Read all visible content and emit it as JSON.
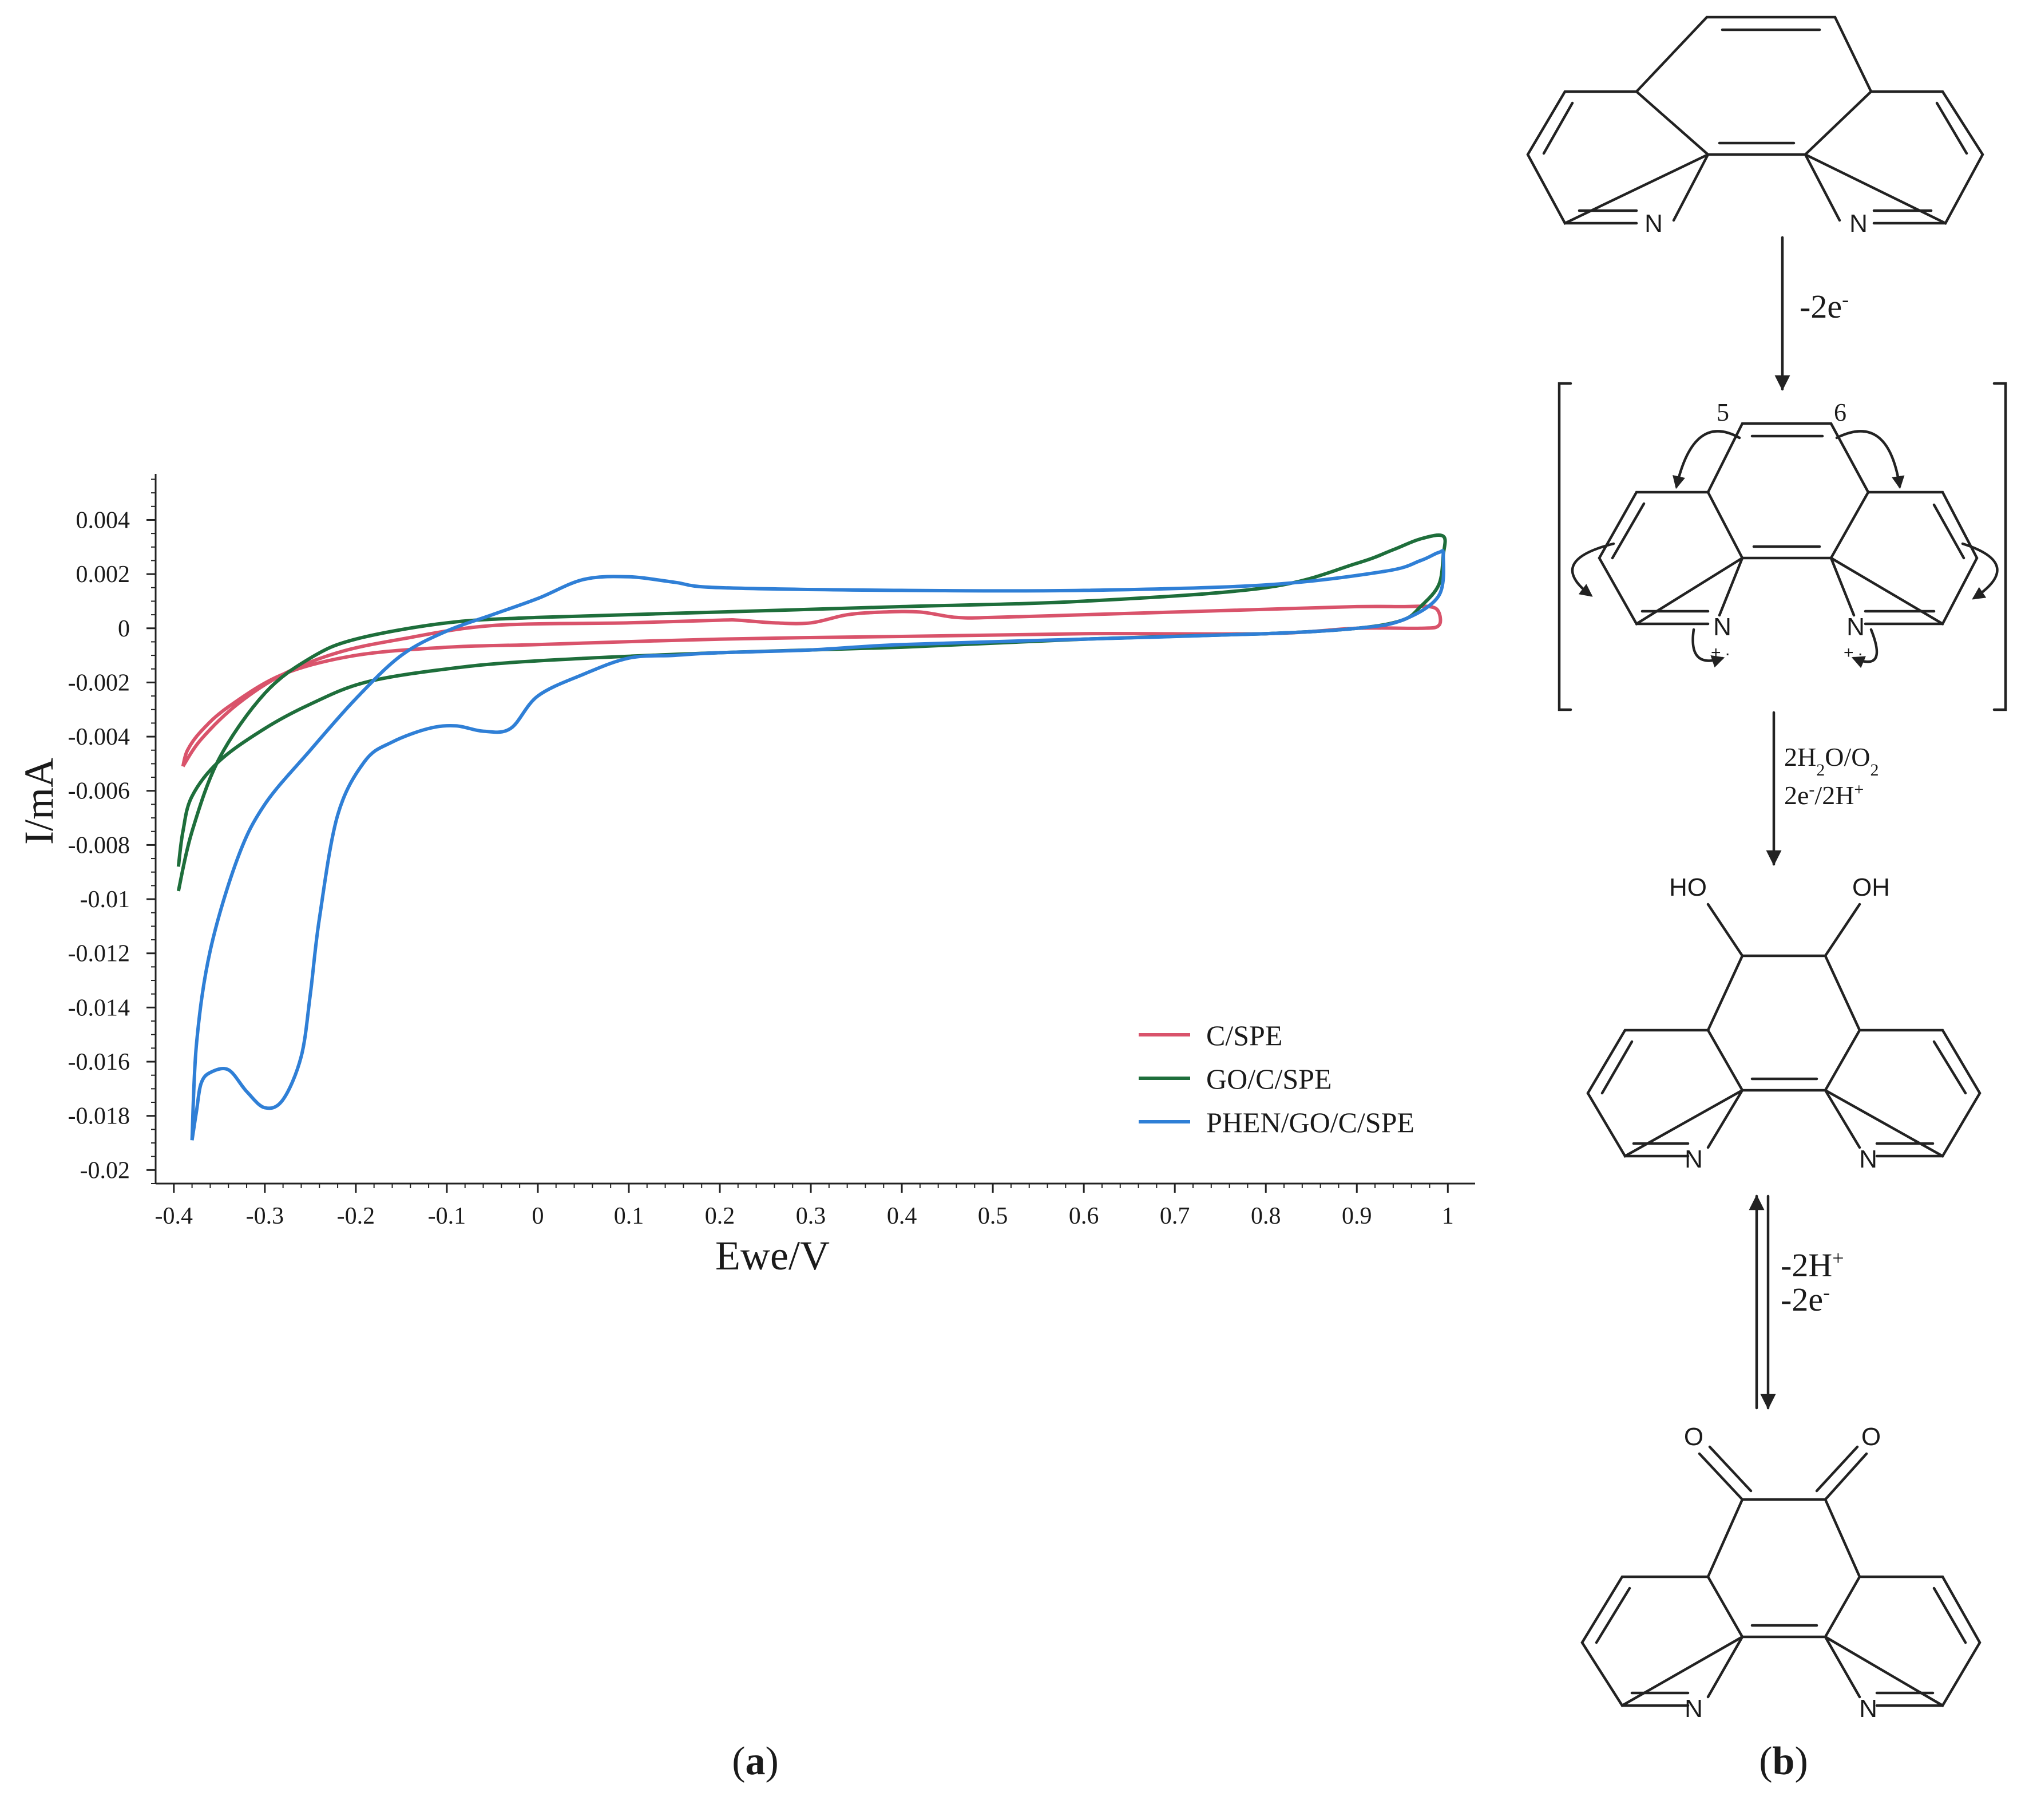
{
  "figure": {
    "panel_a_label": "a",
    "panel_b_label": "b",
    "colors": {
      "C/SPE": "#d9536b",
      "GO/C/SPE": "#1e6e3b",
      "PHEN/GO/C/SPE": "#2f7fd6"
    }
  },
  "chart_data": {
    "type": "line",
    "title": "",
    "xlabel": "Ewe/V",
    "ylabel": "I/mA",
    "xlim": [
      -0.42,
      1.03
    ],
    "ylim": [
      -0.0205,
      0.0057
    ],
    "xticks": [
      -0.4,
      -0.3,
      -0.2,
      -0.1,
      0,
      0.1,
      0.2,
      0.3,
      0.4,
      0.5,
      0.6,
      0.7,
      0.8,
      0.9,
      1
    ],
    "xtick_labels": [
      "-0.4",
      "-0.3",
      "-0.2",
      "-0.1",
      "0",
      "0.1",
      "0.2",
      "0.3",
      "0.4",
      "0.5",
      "0.6",
      "0.7",
      "0.8",
      "0.9",
      "1"
    ],
    "yticks": [
      0.004,
      0.002,
      0,
      -0.002,
      -0.004,
      -0.006,
      -0.008,
      -0.01,
      -0.012,
      -0.014,
      -0.016,
      -0.018,
      -0.02
    ],
    "ytick_labels": [
      "0.004",
      "0.002",
      "0",
      "-0.002",
      "-0.004",
      "-0.006",
      "-0.008",
      "-0.01",
      "-0.012",
      "-0.014",
      "-0.016",
      "-0.018",
      "-0.02"
    ],
    "grid": false,
    "legend_position": "bottom-right",
    "series": [
      {
        "name": "C/SPE",
        "color": "#d9536b",
        "x": [
          -0.39,
          -0.37,
          -0.33,
          -0.28,
          -0.22,
          -0.15,
          -0.05,
          0.1,
          0.2,
          0.22,
          0.26,
          0.3,
          0.34,
          0.38,
          0.42,
          0.46,
          0.5,
          0.6,
          0.7,
          0.8,
          0.9,
          0.95,
          0.98,
          0.99,
          0.99,
          0.97,
          0.9,
          0.8,
          0.6,
          0.4,
          0.2,
          0.0,
          -0.1,
          -0.2,
          -0.28,
          -0.34,
          -0.37,
          -0.385,
          -0.39
        ],
        "y": [
          -0.0051,
          -0.0041,
          -0.0028,
          -0.0017,
          -0.0009,
          -0.0004,
          0.0001,
          0.0002,
          0.0003,
          0.0003,
          0.0002,
          0.0002,
          0.0005,
          0.0006,
          0.0006,
          0.0004,
          0.0004,
          0.0005,
          0.0006,
          0.0007,
          0.0008,
          0.0008,
          0.0008,
          0.0006,
          0.0001,
          0.0,
          0.0,
          -0.0002,
          -0.0002,
          -0.0003,
          -0.0004,
          -0.0006,
          -0.0007,
          -0.001,
          -0.0017,
          -0.0029,
          -0.0038,
          -0.0045,
          -0.0051
        ]
      },
      {
        "name": "GO/C/SPE",
        "color": "#1e6e3b",
        "x": [
          -0.395,
          -0.38,
          -0.35,
          -0.3,
          -0.25,
          -0.2,
          -0.1,
          0.0,
          0.2,
          0.4,
          0.6,
          0.8,
          0.9,
          0.94,
          0.97,
          0.995,
          0.995,
          0.99,
          0.97,
          0.95,
          0.9,
          0.8,
          0.6,
          0.4,
          0.2,
          0.0,
          -0.1,
          -0.19,
          -0.25,
          -0.3,
          -0.35,
          -0.38,
          -0.39,
          -0.395
        ],
        "y": [
          -0.0097,
          -0.0075,
          -0.0048,
          -0.0024,
          -0.0011,
          -0.0004,
          0.0002,
          0.0004,
          0.0006,
          0.0008,
          0.001,
          0.0015,
          0.0024,
          0.0029,
          0.0033,
          0.0034,
          0.0027,
          0.0016,
          0.0008,
          0.0003,
          0.0,
          -0.0002,
          -0.0004,
          -0.0007,
          -0.0009,
          -0.0012,
          -0.0015,
          -0.002,
          -0.0028,
          -0.0037,
          -0.0049,
          -0.0062,
          -0.0075,
          -0.0088
        ]
      },
      {
        "name": "PHEN/GO/C/SPE",
        "color": "#2f7fd6",
        "x": [
          -0.38,
          -0.375,
          -0.37,
          -0.36,
          -0.34,
          -0.32,
          -0.3,
          -0.28,
          -0.26,
          -0.25,
          -0.24,
          -0.22,
          -0.19,
          -0.16,
          -0.12,
          -0.09,
          -0.06,
          -0.03,
          0.0,
          0.05,
          0.1,
          0.15,
          0.2,
          0.3,
          0.4,
          0.6,
          0.8,
          0.9,
          0.95,
          0.99,
          0.995,
          0.99,
          0.97,
          0.93,
          0.8,
          0.6,
          0.4,
          0.2,
          0.15,
          0.1,
          0.05,
          0.0,
          -0.05,
          -0.1,
          -0.15,
          -0.2,
          -0.25,
          -0.3,
          -0.33,
          -0.36,
          -0.375,
          -0.38
        ],
        "y": [
          -0.0189,
          -0.0178,
          -0.0168,
          -0.0164,
          -0.0163,
          -0.0171,
          -0.0177,
          -0.0174,
          -0.0158,
          -0.0135,
          -0.0107,
          -0.0069,
          -0.0049,
          -0.0042,
          -0.0037,
          -0.0036,
          -0.0038,
          -0.0037,
          -0.0025,
          -0.0017,
          -0.0011,
          -0.001,
          -0.0009,
          -0.0008,
          -0.0006,
          -0.0004,
          -0.0002,
          0.0,
          0.0003,
          0.0012,
          0.0027,
          0.0028,
          0.0025,
          0.0021,
          0.0016,
          0.0014,
          0.0014,
          0.0015,
          0.0017,
          0.0019,
          0.0018,
          0.0011,
          0.0005,
          -0.0001,
          -0.001,
          -0.0026,
          -0.0045,
          -0.0065,
          -0.0085,
          -0.0119,
          -0.0153,
          -0.0189
        ]
      }
    ]
  },
  "scheme": {
    "step1": "-2e-",
    "step2_line1": "2H2O/O2",
    "step2_line2": "2e-/2H+",
    "step3_line1": "-2H+",
    "step3_line2": "-2e-",
    "atom_N": "N",
    "atom_HO": "HO",
    "atom_OH": "OH",
    "atom_O": "O",
    "position_5": "5",
    "position_6": "6",
    "charge_plus": "+",
    "radical_dot": "."
  }
}
